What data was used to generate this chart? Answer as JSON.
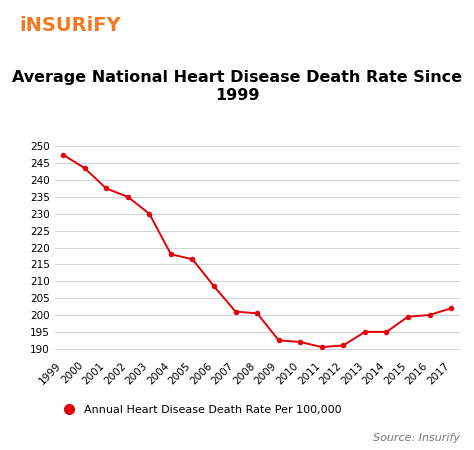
{
  "years": [
    1999,
    2000,
    2001,
    2002,
    2003,
    2004,
    2005,
    2006,
    2007,
    2008,
    2009,
    2010,
    2011,
    2012,
    2013,
    2014,
    2015,
    2016,
    2017
  ],
  "values": [
    247.5,
    243.5,
    237.5,
    235.0,
    230.0,
    218.0,
    216.5,
    208.5,
    201.0,
    200.5,
    192.5,
    192.0,
    190.5,
    191.0,
    195.0,
    195.0,
    199.5,
    200.0,
    202.0
  ],
  "line_color": "#e0000a",
  "marker_color": "#e0000a",
  "title_line1": "Average National Heart Disease Death Rate Since",
  "title_line2": "1999",
  "logo_text": "iNSURiFY",
  "logo_color": "#f47920",
  "legend_label": "Annual Heart Disease Death Rate Per 100,000",
  "source_text": "Source: Insurify",
  "ylim": [
    188,
    252
  ],
  "yticks": [
    190,
    195,
    200,
    205,
    210,
    215,
    220,
    225,
    230,
    235,
    240,
    245,
    250
  ],
  "background_color": "#ffffff",
  "grid_color": "#cccccc",
  "title_fontsize": 11.5,
  "axis_fontsize": 7.5,
  "legend_fontsize": 8,
  "source_fontsize": 8
}
